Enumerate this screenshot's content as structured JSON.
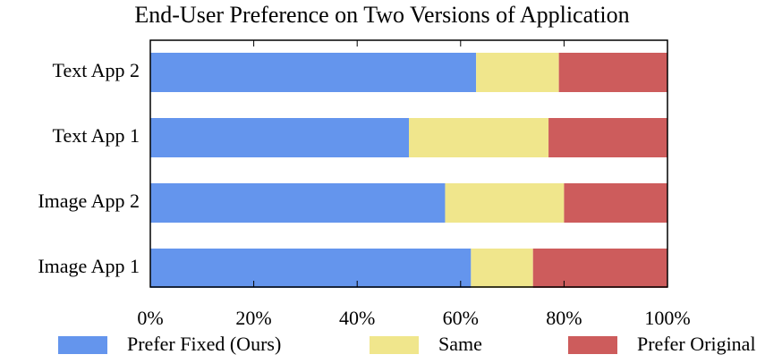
{
  "chart_data": {
    "type": "stacked-barh",
    "title": "End-User Preference on Two Versions of Application",
    "categories": [
      "Image App 1",
      "Image App 2",
      "Text App 1",
      "Text App 2"
    ],
    "series": [
      {
        "name": "Prefer Fixed (Ours)",
        "color": "#6495ed",
        "values": [
          62,
          57,
          50,
          63
        ]
      },
      {
        "name": "Same",
        "color": "#f0e68c",
        "values": [
          12,
          23,
          27,
          16
        ]
      },
      {
        "name": "Prefer Original",
        "color": "#cd5c5c",
        "values": [
          26,
          20,
          23,
          21
        ]
      }
    ],
    "xlim": [
      0,
      100
    ],
    "xticks": [
      {
        "value": 0,
        "label": "0%"
      },
      {
        "value": 20,
        "label": "20%"
      },
      {
        "value": 40,
        "label": "40%"
      },
      {
        "value": 60,
        "label": "60%"
      },
      {
        "value": 80,
        "label": "80%"
      },
      {
        "value": 100,
        "label": "100%"
      }
    ],
    "legend": "bottom"
  }
}
